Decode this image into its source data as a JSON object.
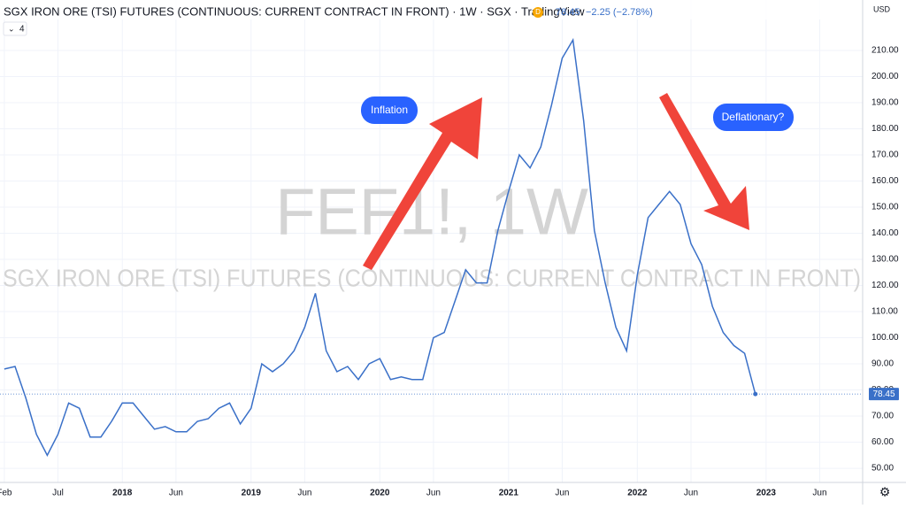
{
  "chart_data": {
    "type": "line",
    "title": "SGX IRON ORE (TSI) FUTURES (CONTINUOUS: CURRENT CONTRACT IN FRONT) · 1W · SGX · TradingView",
    "source_badge": "D",
    "change": "−2.25 (−2.78%)",
    "currency": "USD",
    "indicator_count": "4",
    "watermark_symbol": "FEF1!, 1W",
    "watermark_name": "SGX IRON ORE (TSI) FUTURES (CONTINUOUS: CURRENT CONTRACT IN FRONT)",
    "annotations": [
      "Inflation",
      "Deflationary?"
    ],
    "series": [
      {
        "name": "FEF1!",
        "color": "#3a70c8",
        "values": [
          88,
          89,
          77,
          63,
          55,
          63,
          75,
          73,
          62,
          62,
          68,
          75,
          75,
          70,
          65,
          66,
          64,
          64,
          68,
          69,
          73,
          75,
          67,
          73,
          90,
          87,
          90,
          95,
          104,
          117,
          95,
          87,
          89,
          84,
          90,
          92,
          84,
          85,
          84,
          84,
          100,
          102,
          114,
          126,
          121,
          121,
          141,
          156,
          170,
          165,
          173,
          189,
          207,
          214,
          183,
          141,
          121,
          104,
          95,
          124,
          146,
          151,
          156,
          151,
          136,
          128,
          112,
          102,
          97,
          94,
          78.45
        ]
      }
    ],
    "xlim": [
      -0.4,
      80
    ],
    "xticks": [
      {
        "value": 0,
        "label": "Feb"
      },
      {
        "value": 5,
        "label": "Jul"
      },
      {
        "value": 11,
        "label": "2018"
      },
      {
        "value": 16,
        "label": "Jun"
      },
      {
        "value": 23,
        "label": "2019"
      },
      {
        "value": 28,
        "label": "Jun"
      },
      {
        "value": 35,
        "label": "2020"
      },
      {
        "value": 40,
        "label": "Jun"
      },
      {
        "value": 47,
        "label": "2021"
      },
      {
        "value": 52,
        "label": "Jun"
      },
      {
        "value": 59,
        "label": "2022"
      },
      {
        "value": 64,
        "label": "Jun"
      },
      {
        "value": 71,
        "label": "2023"
      },
      {
        "value": 76,
        "label": "Jun"
      }
    ],
    "ylim": [
      44.6,
      229.3
    ],
    "yticks": [
      {
        "value": 50,
        "label": "50.00"
      },
      {
        "value": 60,
        "label": "60.00"
      },
      {
        "value": 70,
        "label": "70.00"
      },
      {
        "value": 80,
        "label": "80.00"
      },
      {
        "value": 90,
        "label": "90.00"
      },
      {
        "value": 100,
        "label": "100.00"
      },
      {
        "value": 110,
        "label": "110.00"
      },
      {
        "value": 120,
        "label": "120.00"
      },
      {
        "value": 130,
        "label": "130.00"
      },
      {
        "value": 140,
        "label": "140.00"
      },
      {
        "value": 150,
        "label": "150.00"
      },
      {
        "value": 160,
        "label": "160.00"
      },
      {
        "value": 170,
        "label": "170.00"
      },
      {
        "value": 180,
        "label": "180.00"
      },
      {
        "value": 190,
        "label": "190.00"
      },
      {
        "value": 200,
        "label": "200.00"
      },
      {
        "value": 210,
        "label": "210.00"
      }
    ],
    "grid": true
  }
}
